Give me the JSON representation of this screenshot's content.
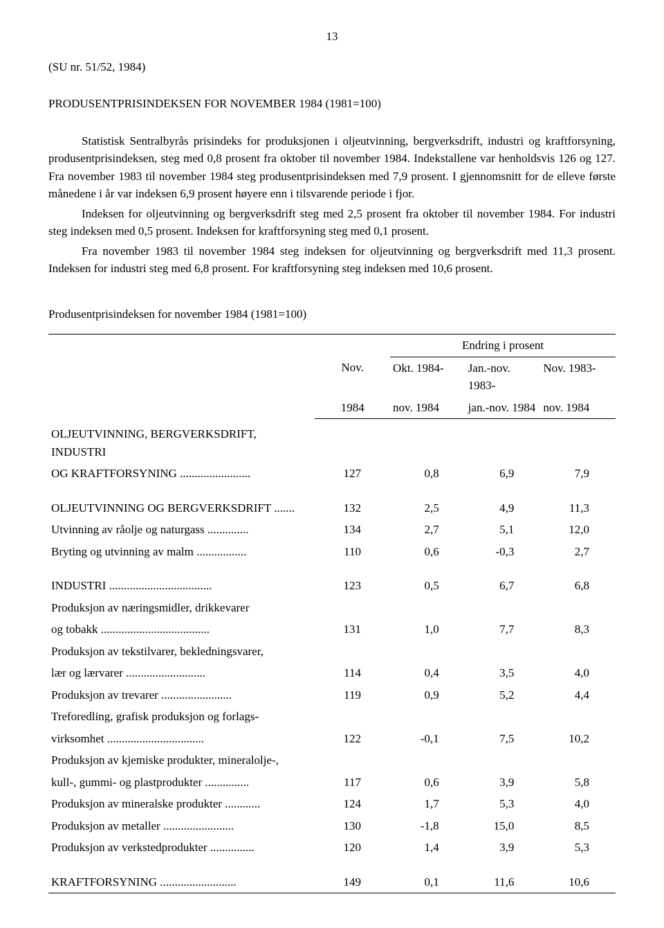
{
  "page_number": "13",
  "doc_ref": "(SU nr. 51/52, 1984)",
  "doc_title": "PRODUSENTPRISINDEKSEN FOR NOVEMBER 1984 (1981=100)",
  "paragraphs": {
    "p1": "Statistisk Sentralbyrås prisindeks for produksjonen i oljeutvinning, bergverksdrift, industri og kraftforsyning, produsentprisindeksen, steg med 0,8 prosent fra oktober til november 1984. Indekstallene var henholdsvis 126 og 127. Fra november 1983 til november 1984 steg produsentprisindeksen med 7,9 prosent. I gjennomsnitt for de elleve første månedene i år var indeksen 6,9 prosent høyere enn i tilsvarende periode i fjor.",
    "p2": "Indeksen for oljeutvinning og bergverksdrift steg med 2,5 prosent fra oktober til november 1984. For industri steg indeksen med 0,5 prosent. Indeksen for kraftforsyning steg med 0,1 prosent.",
    "p3": "Fra november 1983 til november 1984 steg indeksen for oljeutvinning og bergverksdrift med 11,3 prosent. Indeksen for industri steg med 6,8 prosent. For kraftforsyning steg indeksen med 10,6 prosent."
  },
  "table": {
    "title": "Produsentprisindeksen for november 1984 (1981=100)",
    "header_span": "Endring i prosent",
    "headers": {
      "c1a": "Nov.",
      "c1b": "1984",
      "c2a": "Okt. 1984-",
      "c2b": "nov. 1984",
      "c3a": "Jan.-nov. 1983-",
      "c3b": "jan.-nov. 1984",
      "c4a": "Nov. 1983-",
      "c4b": "nov. 1984"
    },
    "rows": [
      {
        "label1": "OLJEUTVINNING, BERGVERKSDRIFT, INDUSTRI",
        "label2": "OG KRAFTFORSYNING ........................",
        "v1": "127",
        "v2": "0,8",
        "v3": "6,9",
        "v4": "7,9"
      },
      {
        "spacer": true
      },
      {
        "label1": "OLJEUTVINNING OG BERGVERKSDRIFT .......",
        "v1": "132",
        "v2": "2,5",
        "v3": "4,9",
        "v4": "11,3"
      },
      {
        "label1": "Utvinning av råolje og naturgass ..............",
        "v1": "134",
        "v2": "2,7",
        "v3": "5,1",
        "v4": "12,0"
      },
      {
        "label1": "Bryting og utvinning av malm .................",
        "v1": "110",
        "v2": "0,6",
        "v3": "-0,3",
        "v4": "2,7"
      },
      {
        "spacer": true
      },
      {
        "label1": "INDUSTRI  ...................................",
        "v1": "123",
        "v2": "0,5",
        "v3": "6,7",
        "v4": "6,8"
      },
      {
        "label1": "Produksjon av næringsmidler, drikkevarer",
        "label2": "og tobakk  .....................................",
        "v1": "131",
        "v2": "1,0",
        "v3": "7,7",
        "v4": "8,3"
      },
      {
        "label1": "Produksjon av tekstilvarer, bekledningsvarer,",
        "label2": "lær og lærvarer  ...........................",
        "v1": "114",
        "v2": "0,4",
        "v3": "3,5",
        "v4": "4,0"
      },
      {
        "label1": "Produksjon av trevarer  ........................",
        "v1": "119",
        "v2": "0,9",
        "v3": "5,2",
        "v4": "4,4"
      },
      {
        "label1": "Treforedling, grafisk produksjon og forlags-",
        "label2": "virksomhet  .................................",
        "v1": "122",
        "v2": "-0,1",
        "v3": "7,5",
        "v4": "10,2"
      },
      {
        "label1": "Produksjon av kjemiske produkter, mineralolje-,",
        "label2": "kull-, gummi- og plastprodukter ...............",
        "v1": "117",
        "v2": "0,6",
        "v3": "3,9",
        "v4": "5,8"
      },
      {
        "label1": "Produksjon av mineralske produkter ............",
        "v1": "124",
        "v2": "1,7",
        "v3": "5,3",
        "v4": "4,0"
      },
      {
        "label1": "Produksjon av metaller ........................",
        "v1": "130",
        "v2": "-1,8",
        "v3": "15,0",
        "v4": "8,5"
      },
      {
        "label1": "Produksjon av verkstedprodukter ...............",
        "v1": "120",
        "v2": "1,4",
        "v3": "3,9",
        "v4": "5,3"
      },
      {
        "spacer": true
      },
      {
        "label1": "KRAFTFORSYNING ..........................",
        "v1": "149",
        "v2": "0,1",
        "v3": "11,6",
        "v4": "10,6"
      }
    ]
  }
}
